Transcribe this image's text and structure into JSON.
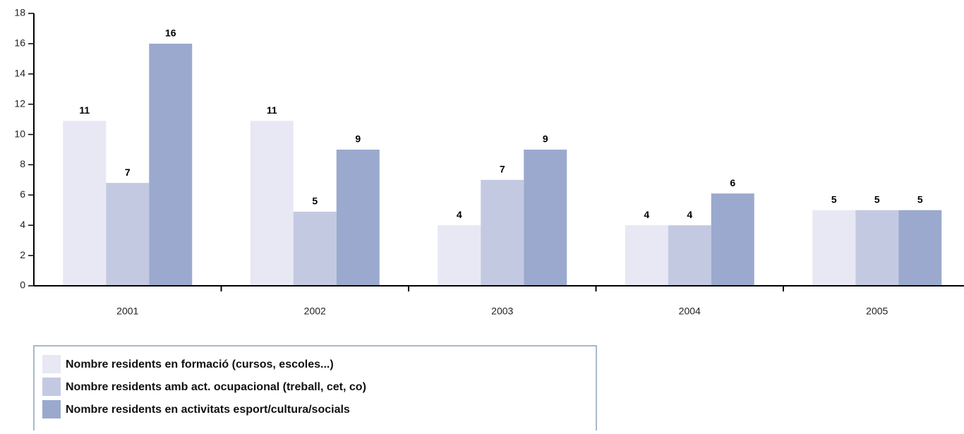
{
  "chart_data": {
    "type": "bar",
    "categories": [
      "2001",
      "2002",
      "2003",
      "2004",
      "2005"
    ],
    "series": [
      {
        "name": "Nombre residents en formació (cursos, escoles...)",
        "color": "#e8e8f4",
        "values": [
          10.9,
          10.9,
          4,
          4,
          5
        ],
        "value_labels": [
          "11",
          "11",
          "4",
          "4",
          "5"
        ]
      },
      {
        "name": "Nombre residents amb act. ocupacional (treball, cet, co)",
        "color": "#c4c9e2",
        "values": [
          6.8,
          4.9,
          7,
          4,
          5
        ],
        "value_labels": [
          "7",
          "5",
          "7",
          "4",
          "5"
        ]
      },
      {
        "name": "Nombre residents en activitats esport/cultura/socials",
        "color": "#9aa9cd",
        "values": [
          16,
          9,
          9,
          6.1,
          5
        ],
        "value_labels": [
          "16",
          "9",
          "9",
          "6",
          "5"
        ]
      }
    ],
    "ylim": [
      0,
      18
    ],
    "yticks": [
      0,
      2,
      4,
      6,
      8,
      10,
      12,
      14,
      16,
      18
    ],
    "grid": false,
    "legend": "bottom-left"
  }
}
